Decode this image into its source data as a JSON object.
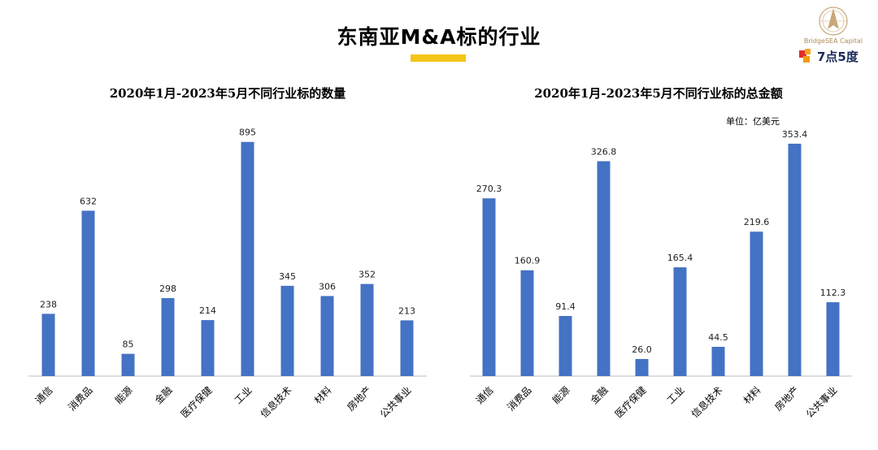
{
  "header": {
    "title": "东南亚M&A标的行业",
    "accent_color": "#f5c518"
  },
  "logo": {
    "company": "BridgeSEA Capital",
    "brand": "7点5度"
  },
  "chart_data": [
    {
      "type": "bar",
      "title": "2020年1月-2023年5月不同行业标的数量",
      "categories": [
        "通信",
        "消费品",
        "能源",
        "金融",
        "医疗保健",
        "工业",
        "信息技术",
        "材料",
        "房地产",
        "公共事业"
      ],
      "values": [
        238,
        632,
        85,
        298,
        214,
        895,
        345,
        306,
        352,
        213
      ],
      "xlabel": "",
      "ylabel": "",
      "ylim": [
        0,
        950
      ],
      "bar_color": "#4472c4"
    },
    {
      "type": "bar",
      "title": "2020年1月-2023年5月不同行业标的总金额",
      "unit": "单位：亿美元",
      "categories": [
        "通信",
        "消费品",
        "能源",
        "金融",
        "医疗保健",
        "工业",
        "信息技术",
        "材料",
        "房地产",
        "公共事业"
      ],
      "values": [
        270.3,
        160.9,
        91.4,
        326.8,
        26.0,
        165.4,
        44.5,
        219.6,
        353.4,
        112.3
      ],
      "value_labels": [
        "270.3",
        "160.9",
        "91.4",
        "326.8",
        "26.0",
        "165.4",
        "44.5",
        "219.6",
        "353.4",
        "112.3"
      ],
      "xlabel": "",
      "ylabel": "",
      "ylim": [
        0,
        378
      ],
      "bar_color": "#4472c4"
    }
  ]
}
